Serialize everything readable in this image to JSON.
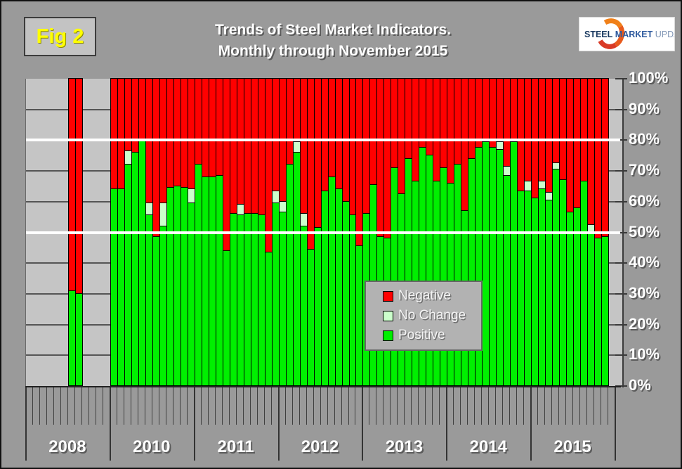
{
  "figure_label": "Fig 2",
  "title_line1": "Trends of Steel Market Indicators.",
  "title_line2": "Monthly through November 2015",
  "logo": {
    "word1": "STEEL",
    "word2": "MARKET",
    "word3": "UPDATE"
  },
  "legend": [
    {
      "key": "negative",
      "label": "Negative",
      "color": "#FF0000"
    },
    {
      "key": "no_change",
      "label": "No Change",
      "color": "#CCFFCC"
    },
    {
      "key": "positive",
      "label": "Positive",
      "color": "#00F000"
    }
  ],
  "colors": {
    "background": "#9A9A9A",
    "plot_background": "#C5C5C5",
    "gridline": "#555555",
    "reference_line": "#FFFFFF",
    "negative": "#FF0000",
    "no_change": "#CCFFCC",
    "positive": "#00F000",
    "fig_label_text": "#FFFF00"
  },
  "chart_data": {
    "type": "bar",
    "stacked": true,
    "title": "Trends of Steel Market Indicators. Monthly through November 2015",
    "ylim": [
      0,
      100
    ],
    "y_tick_labels": [
      "0%",
      "10%",
      "20%",
      "30%",
      "40%",
      "50%",
      "60%",
      "70%",
      "80%",
      "90%",
      "100%"
    ],
    "reference_lines_pct": [
      50,
      80
    ],
    "grid": true,
    "legend_position": "center",
    "year_groups": [
      "2008",
      "2010",
      "2011",
      "2012",
      "2013",
      "2014",
      "2015"
    ],
    "series_order": [
      "positive",
      "no_change",
      "negative"
    ],
    "bars": [
      {
        "year": "2008",
        "month": 7,
        "positive": 31,
        "no_change": 0,
        "negative": 69
      },
      {
        "year": "2008",
        "month": 8,
        "positive": 30,
        "no_change": 0,
        "negative": 70
      },
      {
        "year": "2010",
        "month": 1,
        "positive": 64,
        "no_change": 0,
        "negative": 36
      },
      {
        "year": "2010",
        "month": 2,
        "positive": 64,
        "no_change": 0,
        "negative": 36
      },
      {
        "year": "2010",
        "month": 3,
        "positive": 72,
        "no_change": 4.5,
        "negative": 23.5
      },
      {
        "year": "2010",
        "month": 4,
        "positive": 76,
        "no_change": 0,
        "negative": 24
      },
      {
        "year": "2010",
        "month": 5,
        "positive": 80,
        "no_change": 0,
        "negative": 20
      },
      {
        "year": "2010",
        "month": 6,
        "positive": 55.5,
        "no_change": 4,
        "negative": 40.5
      },
      {
        "year": "2010",
        "month": 7,
        "positive": 48.5,
        "no_change": 0,
        "negative": 51.5
      },
      {
        "year": "2010",
        "month": 8,
        "positive": 52,
        "no_change": 7.5,
        "negative": 40.5
      },
      {
        "year": "2010",
        "month": 9,
        "positive": 64.5,
        "no_change": 0,
        "negative": 35.5
      },
      {
        "year": "2010",
        "month": 10,
        "positive": 65,
        "no_change": 0,
        "negative": 35
      },
      {
        "year": "2010",
        "month": 11,
        "positive": 64.5,
        "no_change": 0,
        "negative": 35.5
      },
      {
        "year": "2010",
        "month": 12,
        "positive": 59.5,
        "no_change": 4.5,
        "negative": 36
      },
      {
        "year": "2011",
        "month": 1,
        "positive": 72,
        "no_change": 0,
        "negative": 28
      },
      {
        "year": "2011",
        "month": 2,
        "positive": 68,
        "no_change": 0,
        "negative": 32
      },
      {
        "year": "2011",
        "month": 3,
        "positive": 68,
        "no_change": 0,
        "negative": 32
      },
      {
        "year": "2011",
        "month": 4,
        "positive": 68.5,
        "no_change": 0,
        "negative": 31.5
      },
      {
        "year": "2011",
        "month": 5,
        "positive": 44,
        "no_change": 0,
        "negative": 56
      },
      {
        "year": "2011",
        "month": 6,
        "positive": 56,
        "no_change": 0,
        "negative": 44
      },
      {
        "year": "2011",
        "month": 7,
        "positive": 55.5,
        "no_change": 3.5,
        "negative": 41
      },
      {
        "year": "2011",
        "month": 8,
        "positive": 56,
        "no_change": 0,
        "negative": 44
      },
      {
        "year": "2011",
        "month": 9,
        "positive": 56,
        "no_change": 0,
        "negative": 44
      },
      {
        "year": "2011",
        "month": 10,
        "positive": 55.5,
        "no_change": 0,
        "negative": 44.5
      },
      {
        "year": "2011",
        "month": 11,
        "positive": 43.5,
        "no_change": 0,
        "negative": 56.5
      },
      {
        "year": "2011",
        "month": 12,
        "positive": 59.5,
        "no_change": 4,
        "negative": 36.5
      },
      {
        "year": "2012",
        "month": 1,
        "positive": 56.5,
        "no_change": 3.5,
        "negative": 40
      },
      {
        "year": "2012",
        "month": 2,
        "positive": 72,
        "no_change": 0,
        "negative": 28
      },
      {
        "year": "2012",
        "month": 3,
        "positive": 76,
        "no_change": 3.5,
        "negative": 20.5
      },
      {
        "year": "2012",
        "month": 4,
        "positive": 52,
        "no_change": 4,
        "negative": 44
      },
      {
        "year": "2012",
        "month": 5,
        "positive": 44.5,
        "no_change": 0,
        "negative": 55.5
      },
      {
        "year": "2012",
        "month": 6,
        "positive": 51.5,
        "no_change": 0,
        "negative": 48.5
      },
      {
        "year": "2012",
        "month": 7,
        "positive": 63.5,
        "no_change": 0,
        "negative": 36.5
      },
      {
        "year": "2012",
        "month": 8,
        "positive": 68,
        "no_change": 0,
        "negative": 32
      },
      {
        "year": "2012",
        "month": 9,
        "positive": 64,
        "no_change": 0,
        "negative": 36
      },
      {
        "year": "2012",
        "month": 10,
        "positive": 60,
        "no_change": 0,
        "negative": 40
      },
      {
        "year": "2012",
        "month": 11,
        "positive": 55.5,
        "no_change": 0,
        "negative": 44.5
      },
      {
        "year": "2012",
        "month": 12,
        "positive": 45.5,
        "no_change": 0,
        "negative": 54.5
      },
      {
        "year": "2013",
        "month": 1,
        "positive": 56,
        "no_change": 0,
        "negative": 44
      },
      {
        "year": "2013",
        "month": 2,
        "positive": 65.5,
        "no_change": 0,
        "negative": 34.5
      },
      {
        "year": "2013",
        "month": 3,
        "positive": 48.5,
        "no_change": 0,
        "negative": 51.5
      },
      {
        "year": "2013",
        "month": 4,
        "positive": 48,
        "no_change": 0,
        "negative": 52
      },
      {
        "year": "2013",
        "month": 5,
        "positive": 71,
        "no_change": 0,
        "negative": 29
      },
      {
        "year": "2013",
        "month": 6,
        "positive": 62.5,
        "no_change": 0,
        "negative": 37.5
      },
      {
        "year": "2013",
        "month": 7,
        "positive": 74,
        "no_change": 0,
        "negative": 26
      },
      {
        "year": "2013",
        "month": 8,
        "positive": 66.5,
        "no_change": 0,
        "negative": 33.5
      },
      {
        "year": "2013",
        "month": 9,
        "positive": 77.5,
        "no_change": 0,
        "negative": 22.5
      },
      {
        "year": "2013",
        "month": 10,
        "positive": 75,
        "no_change": 0,
        "negative": 25
      },
      {
        "year": "2013",
        "month": 11,
        "positive": 66.5,
        "no_change": 0,
        "negative": 33.5
      },
      {
        "year": "2013",
        "month": 12,
        "positive": 71,
        "no_change": 0,
        "negative": 29
      },
      {
        "year": "2014",
        "month": 1,
        "positive": 66,
        "no_change": 0,
        "negative": 34
      },
      {
        "year": "2014",
        "month": 2,
        "positive": 72,
        "no_change": 0,
        "negative": 28
      },
      {
        "year": "2014",
        "month": 3,
        "positive": 57,
        "no_change": 0,
        "negative": 43
      },
      {
        "year": "2014",
        "month": 4,
        "positive": 74,
        "no_change": 0,
        "negative": 26
      },
      {
        "year": "2014",
        "month": 5,
        "positive": 77.5,
        "no_change": 0,
        "negative": 22.5
      },
      {
        "year": "2014",
        "month": 6,
        "positive": 79.5,
        "no_change": 0,
        "negative": 20.5
      },
      {
        "year": "2014",
        "month": 7,
        "positive": 77.5,
        "no_change": 0,
        "negative": 22.5
      },
      {
        "year": "2014",
        "month": 8,
        "positive": 77,
        "no_change": 2.5,
        "negative": 20.5
      },
      {
        "year": "2014",
        "month": 9,
        "positive": 68.5,
        "no_change": 3,
        "negative": 28.5
      },
      {
        "year": "2014",
        "month": 10,
        "positive": 79.5,
        "no_change": 0,
        "negative": 20.5
      },
      {
        "year": "2014",
        "month": 11,
        "positive": 63.5,
        "no_change": 0,
        "negative": 36.5
      },
      {
        "year": "2014",
        "month": 12,
        "positive": 63.5,
        "no_change": 3,
        "negative": 33.5
      },
      {
        "year": "2015",
        "month": 1,
        "positive": 61,
        "no_change": 0,
        "negative": 39
      },
      {
        "year": "2015",
        "month": 2,
        "positive": 64,
        "no_change": 2.5,
        "negative": 33.5
      },
      {
        "year": "2015",
        "month": 3,
        "positive": 60.5,
        "no_change": 2.5,
        "negative": 37
      },
      {
        "year": "2015",
        "month": 4,
        "positive": 70.5,
        "no_change": 2,
        "negative": 27.5
      },
      {
        "year": "2015",
        "month": 5,
        "positive": 67,
        "no_change": 0,
        "negative": 33
      },
      {
        "year": "2015",
        "month": 6,
        "positive": 56.5,
        "no_change": 0,
        "negative": 43.5
      },
      {
        "year": "2015",
        "month": 7,
        "positive": 58,
        "no_change": 0,
        "negative": 42
      },
      {
        "year": "2015",
        "month": 8,
        "positive": 66.5,
        "no_change": 0,
        "negative": 33.5
      },
      {
        "year": "2015",
        "month": 9,
        "positive": 50,
        "no_change": 2.5,
        "negative": 47.5
      },
      {
        "year": "2015",
        "month": 10,
        "positive": 48,
        "no_change": 0,
        "negative": 52
      },
      {
        "year": "2015",
        "month": 11,
        "positive": 48.5,
        "no_change": 0,
        "negative": 51.5
      }
    ]
  }
}
